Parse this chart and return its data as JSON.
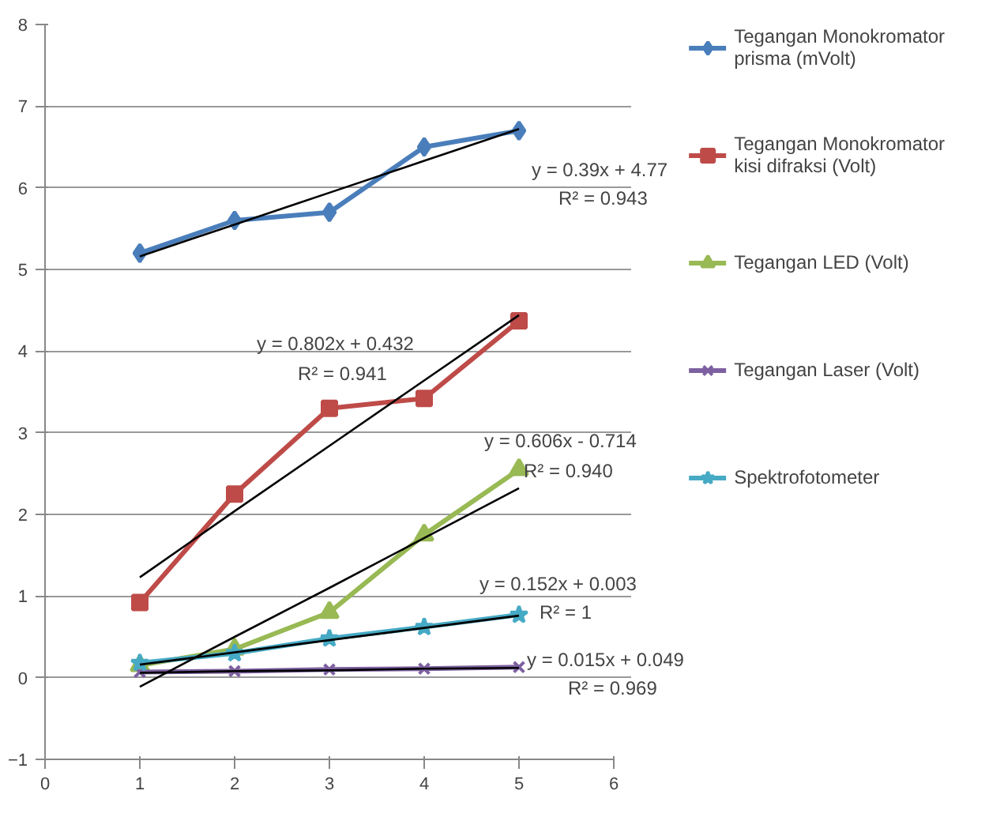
{
  "chart_data": {
    "type": "line",
    "x": [
      1,
      2,
      3,
      4,
      5
    ],
    "series": [
      {
        "name": "Tegangan Monokromator prisma (mVolt)",
        "color": "#4a7ebb",
        "marker": "diamond",
        "values": [
          5.2,
          5.6,
          5.7,
          6.5,
          6.7
        ]
      },
      {
        "name": "Tegangan Monokromator kisi difraksi (Volt)",
        "color": "#be4b48",
        "marker": "square",
        "values": [
          0.92,
          2.25,
          3.3,
          3.42,
          4.37
        ]
      },
      {
        "name": "Tegangan LED (Volt)",
        "color": "#98b954",
        "marker": "triangle",
        "values": [
          0.15,
          0.35,
          0.8,
          1.75,
          2.55
        ]
      },
      {
        "name": "Tegangan Laser (Volt)",
        "color": "#7d60a0",
        "marker": "cross",
        "values": [
          0.07,
          0.08,
          0.1,
          0.11,
          0.13
        ]
      },
      {
        "name": "Spektrofotometer",
        "color": "#46aac5",
        "marker": "star",
        "values": [
          0.18,
          0.3,
          0.48,
          0.62,
          0.77
        ]
      },
      {
        "color": "#000000",
        "marker": "none",
        "values": [
          5.16,
          5.55,
          5.94,
          6.33,
          6.72
        ]
      },
      {
        "color": "#000000",
        "marker": "none",
        "values": [
          1.23,
          2.04,
          2.84,
          3.64,
          4.44
        ]
      },
      {
        "color": "#000000",
        "marker": "none",
        "values": [
          -0.11,
          0.5,
          1.1,
          1.71,
          2.32
        ]
      },
      {
        "color": "#000000",
        "marker": "none",
        "values": [
          0.16,
          0.31,
          0.46,
          0.61,
          0.76
        ]
      },
      {
        "color": "#000000",
        "marker": "none",
        "values": [
          0.06,
          0.08,
          0.09,
          0.11,
          0.12
        ]
      }
    ],
    "xlim": [
      0,
      6
    ],
    "xticks": [
      0,
      1,
      2,
      3,
      4,
      5,
      6
    ],
    "ylim": [
      -1,
      8
    ],
    "yticks": [
      -1,
      0,
      1,
      2,
      3,
      4,
      5,
      6,
      7,
      8
    ],
    "grid": "y",
    "legend": "top right",
    "annotations": [
      "y = 0.39x + 4.77",
      "R² = 0.943",
      "y = 0.802x + 0.432",
      "R² = 0.941",
      "y = 0.606x - 0.714",
      "R² = 0.940",
      "y = 0.152x + 0.003",
      "R² = 1",
      "y = 0.015x + 0.049",
      "R² = 0.969"
    ]
  }
}
